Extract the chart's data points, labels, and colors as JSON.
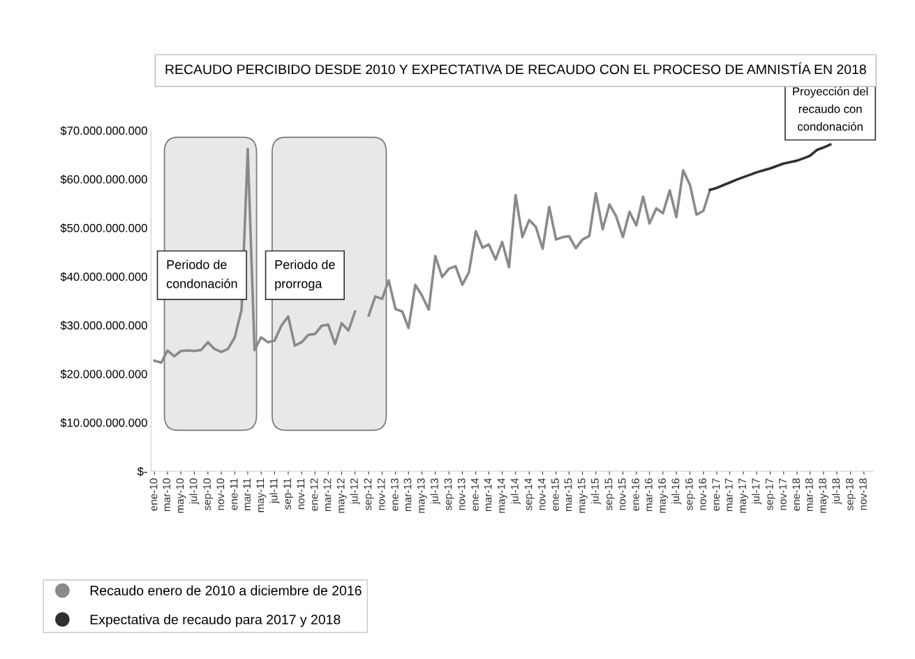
{
  "chart_data": {
    "type": "line",
    "title": "RECAUDO PERCIBIDO DESDE 2010 Y EXPECTATIVA DE RECAUDO CON EL PROCESO DE AMNISTÍA EN 2018",
    "series": [
      {
        "name": "Recaudo enero de 2010 a diciembre de 2016",
        "color": "#8a8a8a",
        "x": [
          "2010-01",
          "2010-02",
          "2010-03",
          "2010-04",
          "2010-05",
          "2010-06",
          "2010-07",
          "2010-08",
          "2010-09",
          "2010-10",
          "2010-11",
          "2010-12",
          "2011-01",
          "2011-02",
          "2011-03",
          "2011-04",
          "2011-05",
          "2011-06",
          "2011-07",
          "2011-08",
          "2011-09",
          "2011-10",
          "2011-11",
          "2011-12",
          "2012-01",
          "2012-02",
          "2012-03",
          "2012-04",
          "2012-05",
          "2012-06",
          "2012-07",
          "2012-08",
          "2012-09",
          "2012-10",
          "2012-11",
          "2012-12",
          "2013-01",
          "2013-02",
          "2013-03",
          "2013-04",
          "2013-05",
          "2013-06",
          "2013-07",
          "2013-08",
          "2013-09",
          "2013-10",
          "2013-11",
          "2013-12",
          "2014-01",
          "2014-02",
          "2014-03",
          "2014-04",
          "2014-05",
          "2014-06",
          "2014-07",
          "2014-08",
          "2014-09",
          "2014-10",
          "2014-11",
          "2014-12",
          "2015-01",
          "2015-02",
          "2015-03",
          "2015-04",
          "2015-05",
          "2015-06",
          "2015-07",
          "2015-08",
          "2015-09",
          "2015-10",
          "2015-11",
          "2015-12",
          "2016-01",
          "2016-02",
          "2016-03",
          "2016-04",
          "2016-05",
          "2016-06",
          "2016-07",
          "2016-08",
          "2016-09",
          "2016-10",
          "2016-11",
          "2016-12"
        ],
        "values": [
          22700000000,
          22300000000,
          24800000000,
          23600000000,
          24700000000,
          24800000000,
          24700000000,
          24900000000,
          26500000000,
          25100000000,
          24500000000,
          25100000000,
          27500000000,
          33200000000,
          66200000000,
          24900000000,
          27500000000,
          26500000000,
          26800000000,
          29900000000,
          31800000000,
          25800000000,
          26500000000,
          28000000000,
          28200000000,
          29900000000,
          30100000000,
          26100000000,
          30400000000,
          28900000000,
          32800000000,
          null,
          32000000000,
          35900000000,
          35400000000,
          39200000000,
          33300000000,
          32800000000,
          29400000000,
          38300000000,
          36100000000,
          33200000000,
          44200000000,
          39900000000,
          41600000000,
          42100000000,
          38300000000,
          40900000000,
          49300000000,
          45900000000,
          46600000000,
          43500000000,
          47100000000,
          41900000000,
          56700000000,
          48100000000,
          51600000000,
          50200000000,
          45700000000,
          54300000000,
          47600000000,
          48100000000,
          48300000000,
          45800000000,
          47600000000,
          48300000000,
          57100000000,
          49700000000,
          54800000000,
          52400000000,
          48100000000,
          53300000000,
          50500000000,
          56400000000,
          50900000000,
          54000000000,
          53000000000,
          57700000000,
          52200000000,
          61800000000,
          58800000000,
          52700000000,
          53500000000,
          57800000000
        ]
      },
      {
        "name": "Expectativa de recaudo para 2017 y 2018",
        "color": "#303030",
        "x": [
          "2016-12",
          "2017-01",
          "2017-02",
          "2017-03",
          "2017-04",
          "2017-05",
          "2017-06",
          "2017-07",
          "2017-08",
          "2017-09",
          "2017-10",
          "2017-11",
          "2017-12",
          "2018-01",
          "2018-02",
          "2018-03",
          "2018-04",
          "2018-05",
          "2018-06"
        ],
        "values": [
          57800000000,
          58200000000,
          58800000000,
          59300000000,
          59900000000,
          60400000000,
          60900000000,
          61400000000,
          61800000000,
          62200000000,
          62700000000,
          63200000000,
          63500000000,
          63800000000,
          64300000000,
          64800000000,
          66000000000,
          66500000000,
          67100000000
        ]
      }
    ],
    "xlim": [
      "2009-12-16",
      "2018-12-16"
    ],
    "xticks": [
      {
        "value": "2010-01",
        "label": "ene-10"
      },
      {
        "value": "2010-03",
        "label": "mar-10"
      },
      {
        "value": "2010-05",
        "label": "may-10"
      },
      {
        "value": "2010-07",
        "label": "jul-10"
      },
      {
        "value": "2010-09",
        "label": "sep-10"
      },
      {
        "value": "2010-11",
        "label": "nov-10"
      },
      {
        "value": "2011-01",
        "label": "ene-11"
      },
      {
        "value": "2011-03",
        "label": "mar-11"
      },
      {
        "value": "2011-05",
        "label": "may-11"
      },
      {
        "value": "2011-07",
        "label": "jul-11"
      },
      {
        "value": "2011-09",
        "label": "sep-11"
      },
      {
        "value": "2011-11",
        "label": "nov-11"
      },
      {
        "value": "2012-01",
        "label": "ene-12"
      },
      {
        "value": "2012-03",
        "label": "mar-12"
      },
      {
        "value": "2012-05",
        "label": "may-12"
      },
      {
        "value": "2012-07",
        "label": "jul-12"
      },
      {
        "value": "2012-09",
        "label": "sep-12"
      },
      {
        "value": "2012-11",
        "label": "nov-12"
      },
      {
        "value": "2013-01",
        "label": "ene-13"
      },
      {
        "value": "2013-03",
        "label": "mar-13"
      },
      {
        "value": "2013-05",
        "label": "may-13"
      },
      {
        "value": "2013-07",
        "label": "jul-13"
      },
      {
        "value": "2013-09",
        "label": "sep-13"
      },
      {
        "value": "2013-11",
        "label": "nov-13"
      },
      {
        "value": "2014-01",
        "label": "ene-14"
      },
      {
        "value": "2014-03",
        "label": "mar-14"
      },
      {
        "value": "2014-05",
        "label": "may-14"
      },
      {
        "value": "2014-07",
        "label": "jul-14"
      },
      {
        "value": "2014-09",
        "label": "sep-14"
      },
      {
        "value": "2014-11",
        "label": "nov-14"
      },
      {
        "value": "2015-01",
        "label": "ene-15"
      },
      {
        "value": "2015-03",
        "label": "mar-15"
      },
      {
        "value": "2015-05",
        "label": "may-15"
      },
      {
        "value": "2015-07",
        "label": "jul-15"
      },
      {
        "value": "2015-09",
        "label": "sep-15"
      },
      {
        "value": "2015-11",
        "label": "nov-15"
      },
      {
        "value": "2016-01",
        "label": "ene-16"
      },
      {
        "value": "2016-03",
        "label": "mar-16"
      },
      {
        "value": "2016-05",
        "label": "may-16"
      },
      {
        "value": "2016-07",
        "label": "jul-16"
      },
      {
        "value": "2016-09",
        "label": "sep-16"
      },
      {
        "value": "2016-11",
        "label": "nov-16"
      },
      {
        "value": "2017-01",
        "label": "ene-17"
      },
      {
        "value": "2017-03",
        "label": "mar-17"
      },
      {
        "value": "2017-05",
        "label": "may-17"
      },
      {
        "value": "2017-07",
        "label": "jul-17"
      },
      {
        "value": "2017-09",
        "label": "sep-17"
      },
      {
        "value": "2017-11",
        "label": "nov-17"
      },
      {
        "value": "2018-01",
        "label": "ene-18"
      },
      {
        "value": "2018-03",
        "label": "mar-18"
      },
      {
        "value": "2018-05",
        "label": "may-18"
      },
      {
        "value": "2018-07",
        "label": "jul-18"
      },
      {
        "value": "2018-09",
        "label": "sep-18"
      },
      {
        "value": "2018-11",
        "label": "nov-18"
      }
    ],
    "ylim": [
      0,
      70000000000
    ],
    "yticks": [
      {
        "value": 0,
        "label": "$-"
      },
      {
        "value": 10000000000,
        "label": "$10.000.000.000"
      },
      {
        "value": 20000000000,
        "label": "$20.000.000.000"
      },
      {
        "value": 30000000000,
        "label": "$30.000.000.000"
      },
      {
        "value": 40000000000,
        "label": "$40.000.000.000"
      },
      {
        "value": 50000000000,
        "label": "$50.000.000.000"
      },
      {
        "value": 60000000000,
        "label": "$60.000.000.000"
      },
      {
        "value": 70000000000,
        "label": "$70.000.000.000"
      }
    ],
    "bands": [
      {
        "axis": "x",
        "from": "2010-02-15",
        "to": "2011-04-10",
        "label": "Periodo de condonación",
        "color": "#e8e8e8"
      },
      {
        "axis": "x",
        "from": "2011-06-20",
        "to": "2012-11-20",
        "label": "Periodo de prorroga",
        "color": "#e8e8e8"
      }
    ],
    "annotations": [
      {
        "text": "Proyección del recaudo con condonación",
        "x": "2018-06",
        "y": 67100000000
      }
    ],
    "grid": false,
    "legend": "bottom left"
  }
}
